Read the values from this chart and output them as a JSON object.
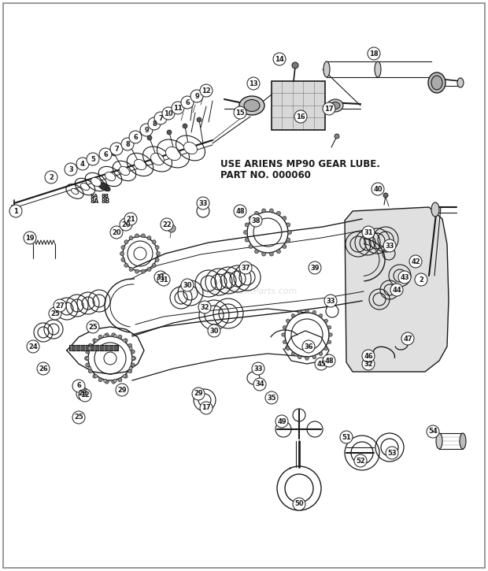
{
  "bg_color": "#ffffff",
  "line_color": "#1a1a1a",
  "label_fontsize": 6.0,
  "ann_line1": "USE ARIENS MP90 GEAR LUBE.",
  "ann_line2": "PART NO. 000060",
  "watermark": "eReplacementParts.com",
  "border_color": "#999999"
}
